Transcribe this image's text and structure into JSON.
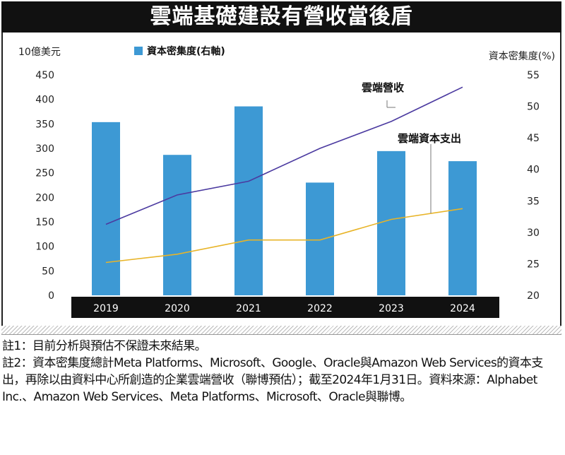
{
  "headline": "雲端基礎建設有營收當後盾",
  "chart_data": {
    "type": "bar+line",
    "title": "雲端基礎建設有營收當後盾",
    "categories": [
      "2019",
      "2020",
      "2021",
      "2022",
      "2023",
      "2024"
    ],
    "y_left": {
      "label": "10億美元",
      "ticks": [
        0,
        50,
        100,
        150,
        200,
        250,
        300,
        350,
        400,
        450
      ],
      "range": [
        0,
        450
      ]
    },
    "y_right": {
      "label": "資本密集度(%)",
      "ticks": [
        20,
        25,
        30,
        35,
        40,
        45,
        50,
        55
      ],
      "range": [
        20,
        55
      ]
    },
    "bar_series": {
      "name": "資本密集度(右軸)",
      "axis": "right",
      "color": "#3d99d4",
      "values": [
        47.5,
        42.3,
        50.0,
        37.9,
        42.9,
        41.3
      ]
    },
    "line_series": [
      {
        "name": "雲端營收",
        "axis": "left",
        "color": "#4b3aa0",
        "values": [
          145,
          205,
          233,
          300,
          355,
          425
        ]
      },
      {
        "name": "雲端資本支出",
        "axis": "left",
        "color": "#e8b428",
        "values": [
          67,
          84,
          113,
          113,
          155,
          177
        ]
      }
    ],
    "legend": {
      "label": "資本密集度(右軸)",
      "position": "top-left"
    }
  },
  "notes": [
    "註1：目前分析與預估不保證未來結果。",
    "註2：資本密集度總計Meta Platforms、Microsoft、Google、Oracle與Amazon Web Services的資本支出，再除以由資料中心所創造的企業雲端營收（聯博預估）；截至2024年1月31日。資料來源：Alphabet Inc.、Amazon Web Services、Meta Platforms、Microsoft、Oracle與聯博。"
  ]
}
